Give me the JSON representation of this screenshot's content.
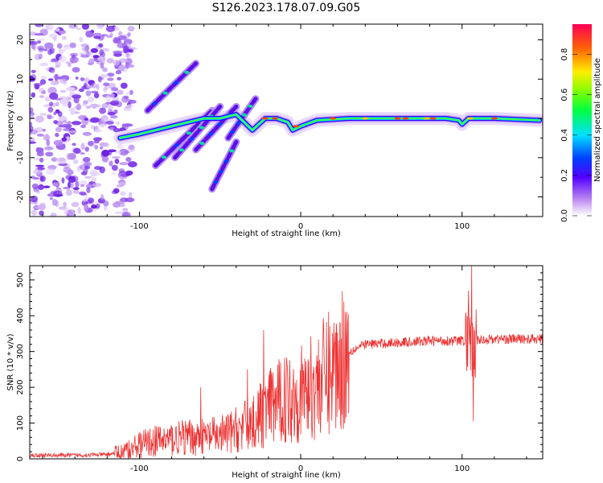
{
  "title": "S126.2023.178.07.09.G05",
  "chart_data": [
    {
      "type": "heatmap",
      "xlabel": "Height of straight line (km)",
      "ylabel": "Frequency (Hz)",
      "xlim": [
        -168,
        150
      ],
      "ylim": [
        -25,
        24
      ],
      "x_ticks": [
        -100,
        0,
        100
      ],
      "y_ticks": [
        -20,
        -10,
        0,
        10,
        20
      ],
      "colorbar": {
        "label": "Normalized spectral amplitude",
        "range": [
          0,
          0.95
        ],
        "ticks": [
          "0.0",
          "0.2",
          "0.4",
          "0.6",
          "0.8"
        ]
      },
      "features": {
        "noise_region_x": [
          -168,
          -110
        ],
        "main_trace": {
          "x": [
            -112,
            -100,
            -90,
            -80,
            -70,
            -60,
            -50,
            -40,
            -30,
            -22,
            -15,
            -8,
            -5,
            0,
            10,
            30,
            60,
            90,
            98,
            100,
            104,
            120,
            148
          ],
          "y": [
            -5,
            -4,
            -3,
            -2,
            -1,
            0,
            0,
            1,
            -3,
            0,
            0,
            -1,
            -3,
            -2,
            -0.5,
            0,
            0,
            0,
            -0.5,
            -1.5,
            0,
            0,
            -0.5
          ]
        },
        "streaks": [
          {
            "x": [
              -90,
              -55
            ],
            "y": [
              -12,
              2
            ]
          },
          {
            "x": [
              -78,
              -50
            ],
            "y": [
              -10,
              3
            ]
          },
          {
            "x": [
              -65,
              -40
            ],
            "y": [
              -8,
              3
            ]
          },
          {
            "x": [
              -55,
              -40
            ],
            "y": [
              -18,
              -6
            ]
          },
          {
            "x": [
              -95,
              -65
            ],
            "y": [
              2,
              14
            ]
          },
          {
            "x": [
              -45,
              -28
            ],
            "y": [
              -5,
              5
            ]
          }
        ]
      }
    },
    {
      "type": "line",
      "xlabel": "Height of straight line (km)",
      "ylabel": "SNR (10 * v/v)",
      "xlim": [
        -168,
        150
      ],
      "ylim": [
        0,
        540
      ],
      "x_ticks": [
        -100,
        0,
        100
      ],
      "y_ticks": [
        0,
        100,
        200,
        300,
        400,
        500
      ],
      "color": "#ee3333",
      "x": [
        -168,
        -140,
        -120,
        -110,
        -100,
        -90,
        -80,
        -70,
        -60,
        -50,
        -40,
        -30,
        -20,
        -10,
        0,
        10,
        20,
        30,
        40,
        60,
        80,
        100,
        120,
        150
      ],
      "y": [
        10,
        10,
        12,
        20,
        40,
        50,
        55,
        60,
        60,
        65,
        80,
        100,
        140,
        170,
        180,
        210,
        250,
        300,
        320,
        325,
        330,
        330,
        335,
        335
      ],
      "spikes": [
        {
          "x": -62,
          "y": 200
        },
        {
          "x": -33,
          "y": 250
        },
        {
          "x": -23,
          "y": 360
        },
        {
          "x": -18,
          "y": 240
        },
        {
          "x": 104,
          "y": 470
        },
        {
          "x": 106,
          "y": 540
        },
        {
          "x": 107,
          "y": 105
        }
      ]
    }
  ]
}
